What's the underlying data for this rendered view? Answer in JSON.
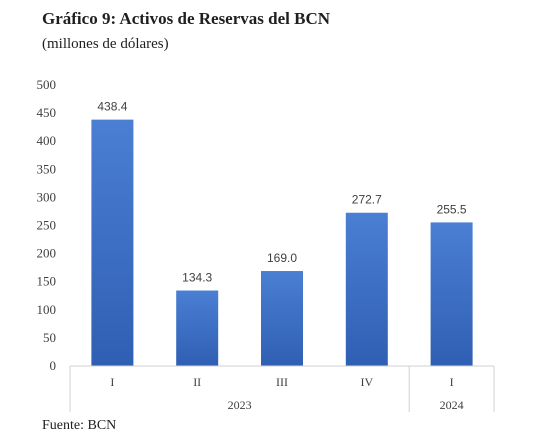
{
  "title": "Gráfico 9:  Activos de Reservas del BCN",
  "subtitle": "(millones de dólares)",
  "source": "Fuente: BCN",
  "colors": {
    "bar_top": "#4a7fd4",
    "bar_bottom": "#2f5fb3",
    "axis": "#d0d0d0",
    "text": "#404040"
  },
  "chart_data": {
    "type": "bar",
    "categories": [
      "I",
      "II",
      "III",
      "IV",
      "I"
    ],
    "groups": [
      {
        "label": "2023",
        "count": 4
      },
      {
        "label": "2024",
        "count": 1
      }
    ],
    "values": [
      438.4,
      134.3,
      169.0,
      272.7,
      255.5
    ],
    "value_labels": [
      "438.4",
      "134.3",
      "169.0",
      "272.7",
      "255.5"
    ],
    "y_ticks": [
      0,
      50,
      100,
      150,
      200,
      250,
      300,
      350,
      400,
      450,
      500
    ],
    "ylim": [
      0,
      500
    ],
    "grid": false,
    "legend": "none"
  }
}
